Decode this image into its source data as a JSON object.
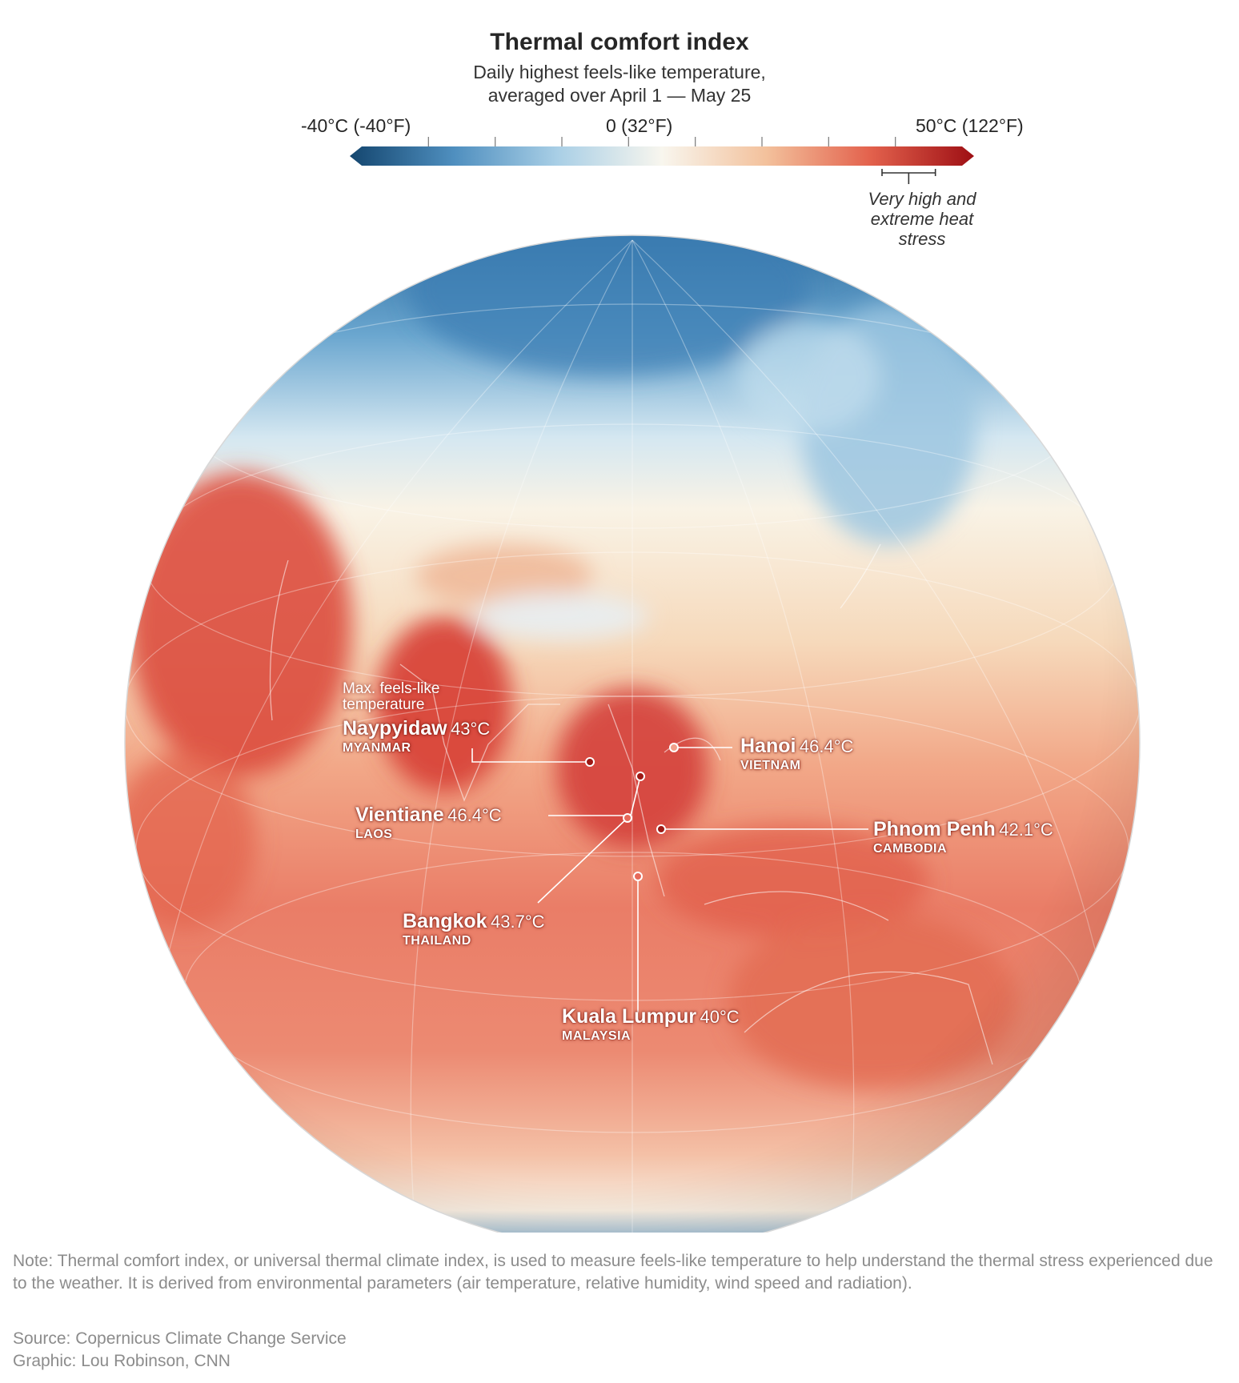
{
  "title": "Thermal comfort index",
  "subtitle": {
    "line1": "Daily highest feels-like temperature,",
    "line2": "averaged over April 1 — May 25"
  },
  "legend": {
    "min_label": "-40°C (-40°F)",
    "mid_label": "0 (32°F)",
    "max_label": "50°C (122°F)",
    "domain_c": [
      -40,
      50
    ],
    "ticks_c": [
      -30,
      -20,
      -10,
      0,
      10,
      20,
      30,
      40
    ],
    "colors": [
      "#14466f",
      "#4f8fbf",
      "#a9cfe6",
      "#f8f6ee",
      "#f3c19c",
      "#e3624d",
      "#9e0f14"
    ],
    "stress_range_c": [
      38,
      46
    ],
    "stress_label": {
      "line1": "Very high and",
      "line2": "extreme heat",
      "line3": "stress"
    }
  },
  "map_hint": {
    "line1": "Max. feels-like",
    "line2": "temperature"
  },
  "cities": [
    {
      "name": "Naypyidaw",
      "value": "43°C",
      "country": "MYANMAR",
      "temp_c": 43
    },
    {
      "name": "Hanoi",
      "value": "46.4°C",
      "country": "VIETNAM",
      "temp_c": 46.4
    },
    {
      "name": "Vientiane",
      "value": "46.4°C",
      "country": "LAOS",
      "temp_c": 46.4
    },
    {
      "name": "Phnom Penh",
      "value": "42.1°C",
      "country": "CAMBODIA",
      "temp_c": 42.1
    },
    {
      "name": "Bangkok",
      "value": "43.7°C",
      "country": "THAILAND",
      "temp_c": 43.7
    },
    {
      "name": "Kuala Lumpur",
      "value": "40°C",
      "country": "MALAYSIA",
      "temp_c": 40
    }
  ],
  "note": "Note: Thermal comfort index, or universal thermal climate index, is used to measure feels-like temperature to help understand the thermal stress experienced due to the weather. It is derived from environmental parameters (air temperature, relative humidity, wind speed and radiation).",
  "source": "Source: Copernicus Climate Change Service",
  "graphic": "Graphic: Lou Robinson, CNN"
}
